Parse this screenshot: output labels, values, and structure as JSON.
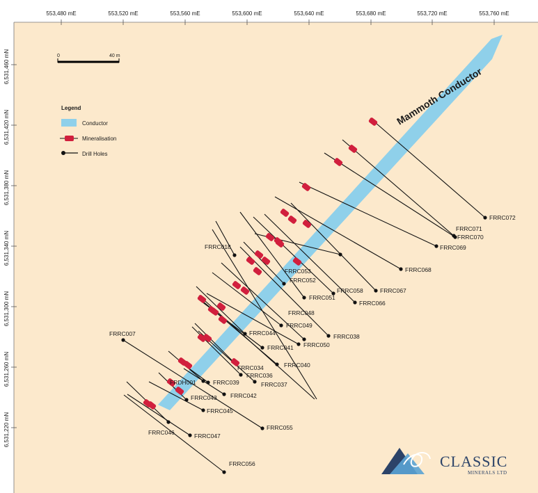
{
  "map": {
    "easting_labels": [
      "553,480 mE",
      "553,520 mE",
      "553,560 mE",
      "553,600 mE",
      "553,640 mE",
      "553,680 mE",
      "553,720 mE",
      "553,760 mE"
    ],
    "northing_labels": [
      "6,531,460 mN",
      "6,531,420 mN",
      "6,531,380 mN",
      "6,531,340 mN",
      "6,531,300 mN",
      "6,531,260 mN",
      "6,531,220 mN"
    ],
    "conductor_label": "Mammoth Conductor",
    "colors": {
      "background": "#fce9cc",
      "conductor": "#8fd0ea",
      "mineralisation": "#d11f3d",
      "drill_hole": "#111111",
      "grid_tick": "#555555"
    }
  },
  "legend": {
    "title": "Legend",
    "items": [
      "Conductor",
      "Mineralisation",
      "Drill Holes"
    ]
  },
  "scale_bar": {
    "start_label": "0",
    "end_label": "40 m"
  },
  "drill_holes": [
    {
      "name": "FRRC072"
    },
    {
      "name": "FRRC071"
    },
    {
      "name": "FRRC070"
    },
    {
      "name": "FRRC069"
    },
    {
      "name": "FRRC068"
    },
    {
      "name": "FRRC067"
    },
    {
      "name": "FRRC066"
    },
    {
      "name": "FRRC058"
    },
    {
      "name": "FRRC051"
    },
    {
      "name": "FRRC053"
    },
    {
      "name": "FRRC052"
    },
    {
      "name": "FRRC018"
    },
    {
      "name": "FRRC048"
    },
    {
      "name": "FRRC049"
    },
    {
      "name": "FRRC038"
    },
    {
      "name": "FRRC044"
    },
    {
      "name": "FRRC050"
    },
    {
      "name": "FRRC041"
    },
    {
      "name": "FRRC040"
    },
    {
      "name": "FRRC034"
    },
    {
      "name": "FRRC036"
    },
    {
      "name": "FRRC037"
    },
    {
      "name": "FRRC007"
    },
    {
      "name": "FRDH001"
    },
    {
      "name": "FRRC039"
    },
    {
      "name": "FRRC042"
    },
    {
      "name": "FRRC043"
    },
    {
      "name": "FRRC045"
    },
    {
      "name": "FRRC055"
    },
    {
      "name": "FRRC046"
    },
    {
      "name": "FRRC047"
    },
    {
      "name": "FRRC056"
    }
  ],
  "logo": {
    "name": "CLASSIC",
    "subtitle": "MINERALS LTD"
  }
}
